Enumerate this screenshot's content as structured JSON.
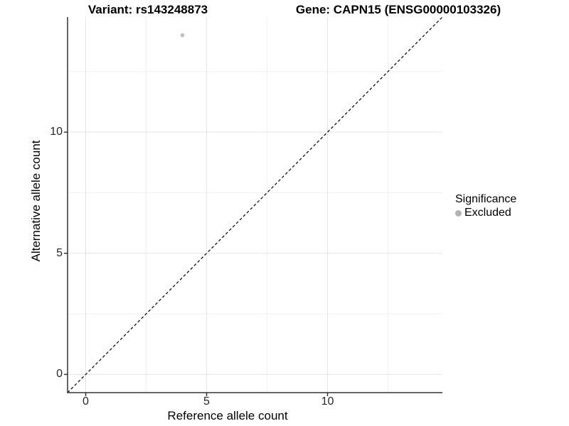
{
  "chart_data": {
    "type": "scatter",
    "title_left": "Variant: rs143248873",
    "title_right": "Gene: CAPN15 (ENSG00000103326)",
    "xlabel": "Reference allele count",
    "ylabel": "Alternative allele count",
    "xlim": [
      -0.75,
      14.75
    ],
    "ylim": [
      -0.75,
      14.75
    ],
    "x_major_ticks": [
      0,
      5,
      10
    ],
    "y_major_ticks": [
      0,
      5,
      10
    ],
    "x_minor_ticks": [
      2.5,
      7.5,
      12.5
    ],
    "y_minor_ticks": [
      2.5,
      7.5,
      12.5
    ],
    "grid": true,
    "points": [
      {
        "x": 4,
        "y": 14,
        "significance": "Excluded"
      }
    ],
    "reference_line": {
      "type": "identity",
      "slope": 1,
      "intercept": 0,
      "linetype": "dashed"
    },
    "legend": {
      "title": "Significance",
      "position": "right",
      "items": [
        {
          "label": "Excluded",
          "color": "#b3b3b3"
        }
      ]
    },
    "colors": {
      "point": "#bfbfbf",
      "reference_line": "#000000",
      "grid_major": "#e3e3e3",
      "grid_minor": "#f0f0f0",
      "axis": "#333333",
      "tick": "#333333",
      "background": "#ffffff"
    }
  }
}
